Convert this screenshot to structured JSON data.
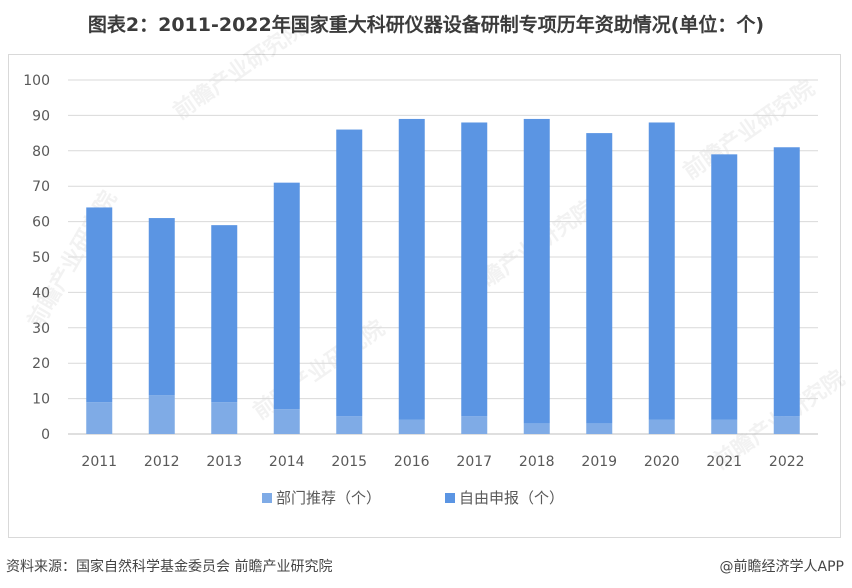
{
  "title": "图表2：2011-2022年国家重大科研仪器设备研制专项历年资助情况(单位：个)",
  "source": "资料来源：国家自然科学基金委员会 前瞻产业研究院",
  "copyright": "@前瞻经济学人APP",
  "watermark": "前瞻产业研究院",
  "colors": {
    "series_bottom": "#7fabe6",
    "series_top": "#5b95e3",
    "grid": "#d9d9d9",
    "axis_text": "#595959"
  },
  "chart_data": {
    "type": "bar",
    "stacked": true,
    "categories": [
      "2011",
      "2012",
      "2013",
      "2014",
      "2015",
      "2016",
      "2017",
      "2018",
      "2019",
      "2020",
      "2021",
      "2022"
    ],
    "series": [
      {
        "name": "部门推荐（个）",
        "values": [
          9,
          11,
          9,
          7,
          5,
          4,
          5,
          3,
          3,
          4,
          4,
          5
        ]
      },
      {
        "name": "自由申报（个）",
        "values": [
          55,
          50,
          50,
          64,
          81,
          85,
          83,
          86,
          82,
          84,
          75,
          76
        ]
      }
    ],
    "yticks": [
      0,
      10,
      20,
      30,
      40,
      50,
      60,
      70,
      80,
      90,
      100
    ],
    "ylim": [
      0,
      100
    ],
    "grid": true,
    "legend_position": "bottom-center"
  }
}
